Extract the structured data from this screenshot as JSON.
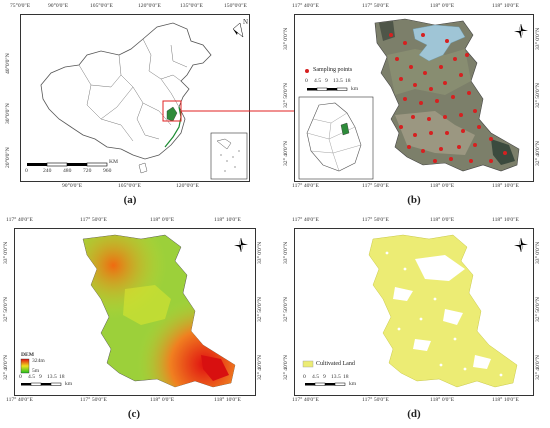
{
  "panel_a": {
    "caption": "(a)",
    "top_ticks": [
      "75°0'0\"E",
      "90°0'0\"E",
      "105°0'0\"E",
      "120°0'0\"E",
      "135°0'0\"E",
      "150°0'0\"E"
    ],
    "bottom_ticks": [
      "90°0'0\"E",
      "105°0'0\"E",
      "120°0'0\"E"
    ],
    "left_ticks": [
      "40°0'0\"N",
      "30°0'0\"N",
      "20°0'0\"N"
    ],
    "scale_labels": [
      "0",
      "240",
      "480",
      "720",
      "960"
    ],
    "scale_unit": "KM",
    "north": "N"
  },
  "panel_b": {
    "caption": "(b)",
    "top_ticks": [
      "117° 40'0\"E",
      "117° 50'0\"E",
      "118° 0'0\"E",
      "118° 10'0\"E"
    ],
    "bottom_ticks": [
      "117° 40'0\"E",
      "117° 50'0\"E",
      "118° 0'0\"E",
      "118° 10'0\"E"
    ],
    "left_ticks": [
      "33° 0'0\"N",
      "32° 50'0\"N",
      "32° 40'0\"N"
    ],
    "right_ticks": [
      "33° 0'0\"N",
      "32° 50'0\"N",
      "32° 40'0\"N"
    ],
    "legend_label": "Sampling points",
    "scale_labels": [
      "0",
      "4.5",
      "9",
      "13.5",
      "18"
    ],
    "scale_unit": "km"
  },
  "panel_c": {
    "caption": "(c)",
    "top_ticks": [
      "117° 40'0\"E",
      "117° 50'0\"E",
      "118° 0'0\"E",
      "118° 10'0\"E"
    ],
    "bottom_ticks": [
      "117° 40'0\"E",
      "117° 50'0\"E",
      "118° 0'0\"E",
      "118° 10'0\"E"
    ],
    "left_ticks": [
      "33° 0'0\"N",
      "32° 50'0\"N",
      "32° 40'0\"N"
    ],
    "right_ticks": [
      "33° 0'0\"N",
      "32° 50'0\"N",
      "32° 40'0\"N"
    ],
    "legend_title": "DEM",
    "legend_max": "324m",
    "legend_min": "5m",
    "scale_labels": [
      "0",
      "4.5",
      "9",
      "13.5",
      "18"
    ],
    "scale_unit": "km"
  },
  "panel_d": {
    "caption": "(d)",
    "top_ticks": [
      "117° 40'0\"E",
      "117° 50'0\"E",
      "118° 0'0\"E",
      "118° 10'0\"E"
    ],
    "bottom_ticks": [
      "117° 40'0\"E",
      "117° 50'0\"E",
      "118° 0'0\"E",
      "118° 10'0\"E"
    ],
    "left_ticks": [
      "33° 0'0\"N",
      "32° 50'0\"N",
      "32° 40'0\"N"
    ],
    "right_ticks": [
      "33° 0'0\"N",
      "32° 50'0\"N",
      "32° 40'0\"N"
    ],
    "legend_label": "Cultivated Land",
    "scale_labels": [
      "0",
      "4.5",
      "9",
      "13.5",
      "18"
    ],
    "scale_unit": "km"
  },
  "colors": {
    "sampling": "#d62020",
    "cultivated": "#ecec74",
    "dem_high": "#e01010",
    "dem_low": "#20c020",
    "highlight": "#e02020",
    "water": "#9fc5d6"
  }
}
